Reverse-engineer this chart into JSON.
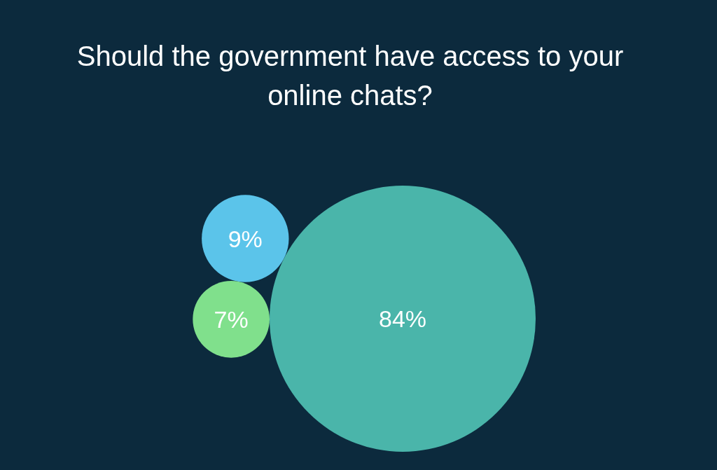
{
  "chart_data": {
    "type": "other",
    "title": "Should the government have access to your online chats?",
    "categories": [
      null,
      null,
      null
    ],
    "values": [
      9,
      7,
      84
    ],
    "value_labels": [
      "9%",
      "7%",
      "84%"
    ],
    "data_labels": true,
    "colors": [
      "#5bc4ea",
      "#80e08c",
      "#4ab5aa"
    ]
  }
}
